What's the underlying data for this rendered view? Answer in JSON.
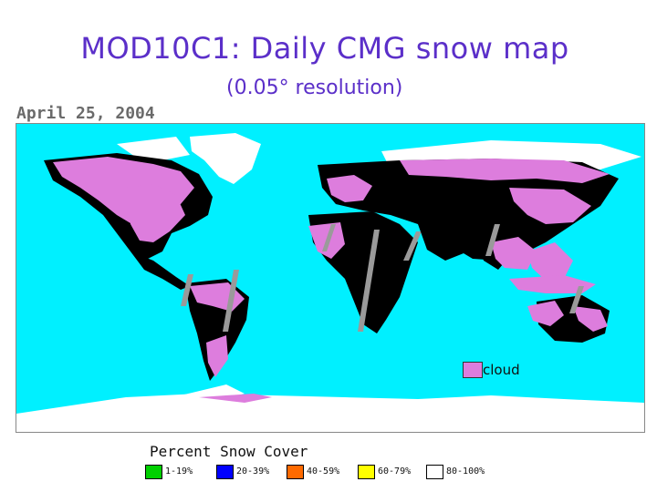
{
  "title": "MOD10C1: Daily CMG snow map",
  "subtitle": "(0.05° resolution)",
  "date": "April 25, 2004",
  "map": {
    "ocean_color": "#00f0ff",
    "land_color": "#000000",
    "cloud_color": "#dd7ddd",
    "snow_color": "#ffffff",
    "no_data_color": "#9a9a9a",
    "cloud_label": "cloud"
  },
  "legend": {
    "title": "Percent Snow Cover",
    "items": [
      {
        "label": "1-19%",
        "color": "#00d000"
      },
      {
        "label": "20-39%",
        "color": "#0000ff"
      },
      {
        "label": "40-59%",
        "color": "#ff6a00"
      },
      {
        "label": "60-79%",
        "color": "#ffff00"
      },
      {
        "label": "80-100%",
        "color": "#ffffff"
      }
    ]
  }
}
